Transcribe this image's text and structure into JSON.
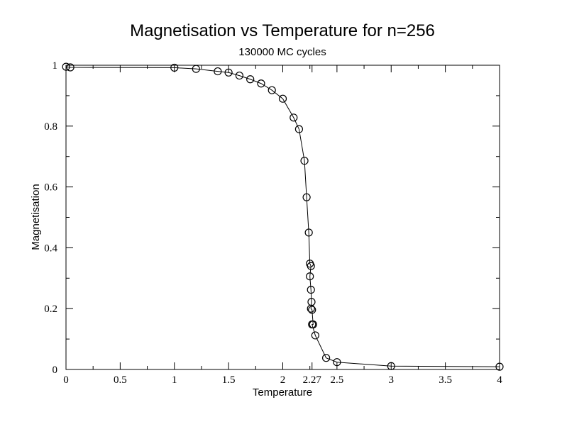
{
  "chart_data": {
    "type": "line",
    "title": "Magnetisation vs Temperature for n=256",
    "subtitle": "130000 MC cycles",
    "xlabel": "Temperature",
    "ylabel": "Magnetisation",
    "xlim": [
      0,
      4
    ],
    "ylim": [
      0,
      1
    ],
    "x_ticks": [
      {
        "value": 0,
        "label": "0"
      },
      {
        "value": 0.5,
        "label": "0.5"
      },
      {
        "value": 1,
        "label": "1"
      },
      {
        "value": 1.5,
        "label": "1.5"
      },
      {
        "value": 2,
        "label": "2"
      },
      {
        "value": 2.27,
        "label": "2.27"
      },
      {
        "value": 2.5,
        "label": "2.5"
      },
      {
        "value": 3,
        "label": "3"
      },
      {
        "value": 3.5,
        "label": "3.5"
      },
      {
        "value": 4,
        "label": "4"
      }
    ],
    "y_ticks": [
      {
        "value": 0,
        "label": "0"
      },
      {
        "value": 0.2,
        "label": "0.2"
      },
      {
        "value": 0.4,
        "label": "0.4"
      },
      {
        "value": 0.6,
        "label": "0.6"
      },
      {
        "value": 0.8,
        "label": "0.8"
      },
      {
        "value": 1,
        "label": "1"
      }
    ],
    "grid": false,
    "marker": "circle",
    "series": [
      {
        "x": [
          0.001,
          0.04,
          1.0,
          1.2,
          1.4,
          1.5,
          1.6,
          1.7,
          1.8,
          1.9,
          2.0,
          2.1,
          2.15,
          2.2,
          2.22,
          2.24,
          2.25,
          2.26,
          2.25,
          2.26,
          2.265,
          2.26,
          2.27,
          2.28,
          2.27,
          2.3,
          2.4,
          2.5,
          3.0,
          4.0
        ],
        "y": [
          0.995,
          0.993,
          0.992,
          0.988,
          0.98,
          0.976,
          0.966,
          0.954,
          0.94,
          0.918,
          0.89,
          0.828,
          0.79,
          0.686,
          0.566,
          0.45,
          0.348,
          0.34,
          0.306,
          0.262,
          0.222,
          0.2,
          0.196,
          0.148,
          0.148,
          0.112,
          0.038,
          0.024,
          0.011,
          0.009
        ]
      }
    ]
  }
}
